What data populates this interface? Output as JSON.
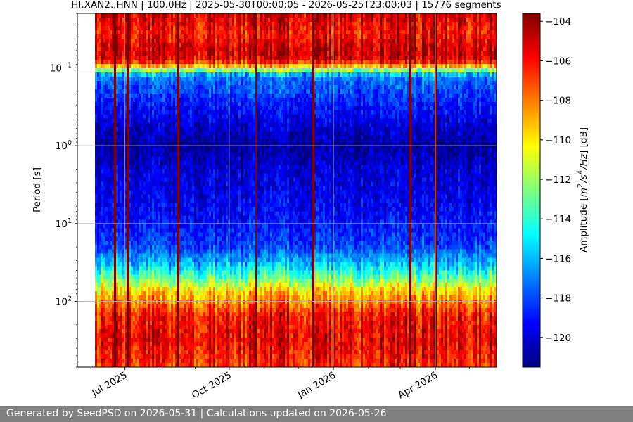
{
  "chart_data": {
    "type": "heatmap",
    "title": "HI.XAN2..HNN | 100.0Hz | 2025-05-30T00:00:05 - 2026-05-25T23:00:03 | 15776 segments",
    "xlabel": "",
    "ylabel": "Period [s]",
    "x_ticks": [
      "Jul 2025",
      "Oct 2025",
      "Jan 2026",
      "Apr 2026"
    ],
    "y_scale": "log",
    "y_ticks": [
      "10^{-1}",
      "10^{0}",
      "10^{1}",
      "10^{2}"
    ],
    "y_tick_values": [
      0.1,
      1,
      10,
      100
    ],
    "y_inverted": true,
    "y_range": [
      0.02,
      700
    ],
    "x_range": [
      "2025-05-30",
      "2026-05-25"
    ],
    "grid": true,
    "colormap": "jet",
    "colorbar": {
      "label_prefix": "Amplitude [",
      "label_math": "m^2/s^4/Hz",
      "label_suffix": "] [dB]",
      "range": [
        -121.5,
        -103.6
      ],
      "ticks": [
        "−104",
        "−106",
        "−108",
        "−110",
        "−112",
        "−114",
        "−116",
        "−118",
        "−120"
      ],
      "tick_values": [
        -104,
        -106,
        -108,
        -110,
        -112,
        -114,
        -116,
        -118,
        -120
      ]
    },
    "amplitude_profile": {
      "log10_period": [
        -1.7,
        -1.45,
        -1.2,
        -1.1,
        -1.0,
        -0.9,
        -0.5,
        0.0,
        0.3,
        0.7,
        1.0,
        1.3,
        1.5,
        1.7,
        1.85,
        2.0,
        2.2,
        2.5,
        2.85
      ],
      "db": [
        -105,
        -106,
        -104.8,
        -105.5,
        -110,
        -117,
        -119,
        -121,
        -120,
        -119.5,
        -119,
        -118,
        -116,
        -113,
        -110,
        -108,
        -106,
        -105.5,
        -106.5
      ]
    }
  },
  "footer": {
    "text": "Generated by SeedPSD on 2026-05-31 | Calculations updated on 2026-05-26"
  }
}
